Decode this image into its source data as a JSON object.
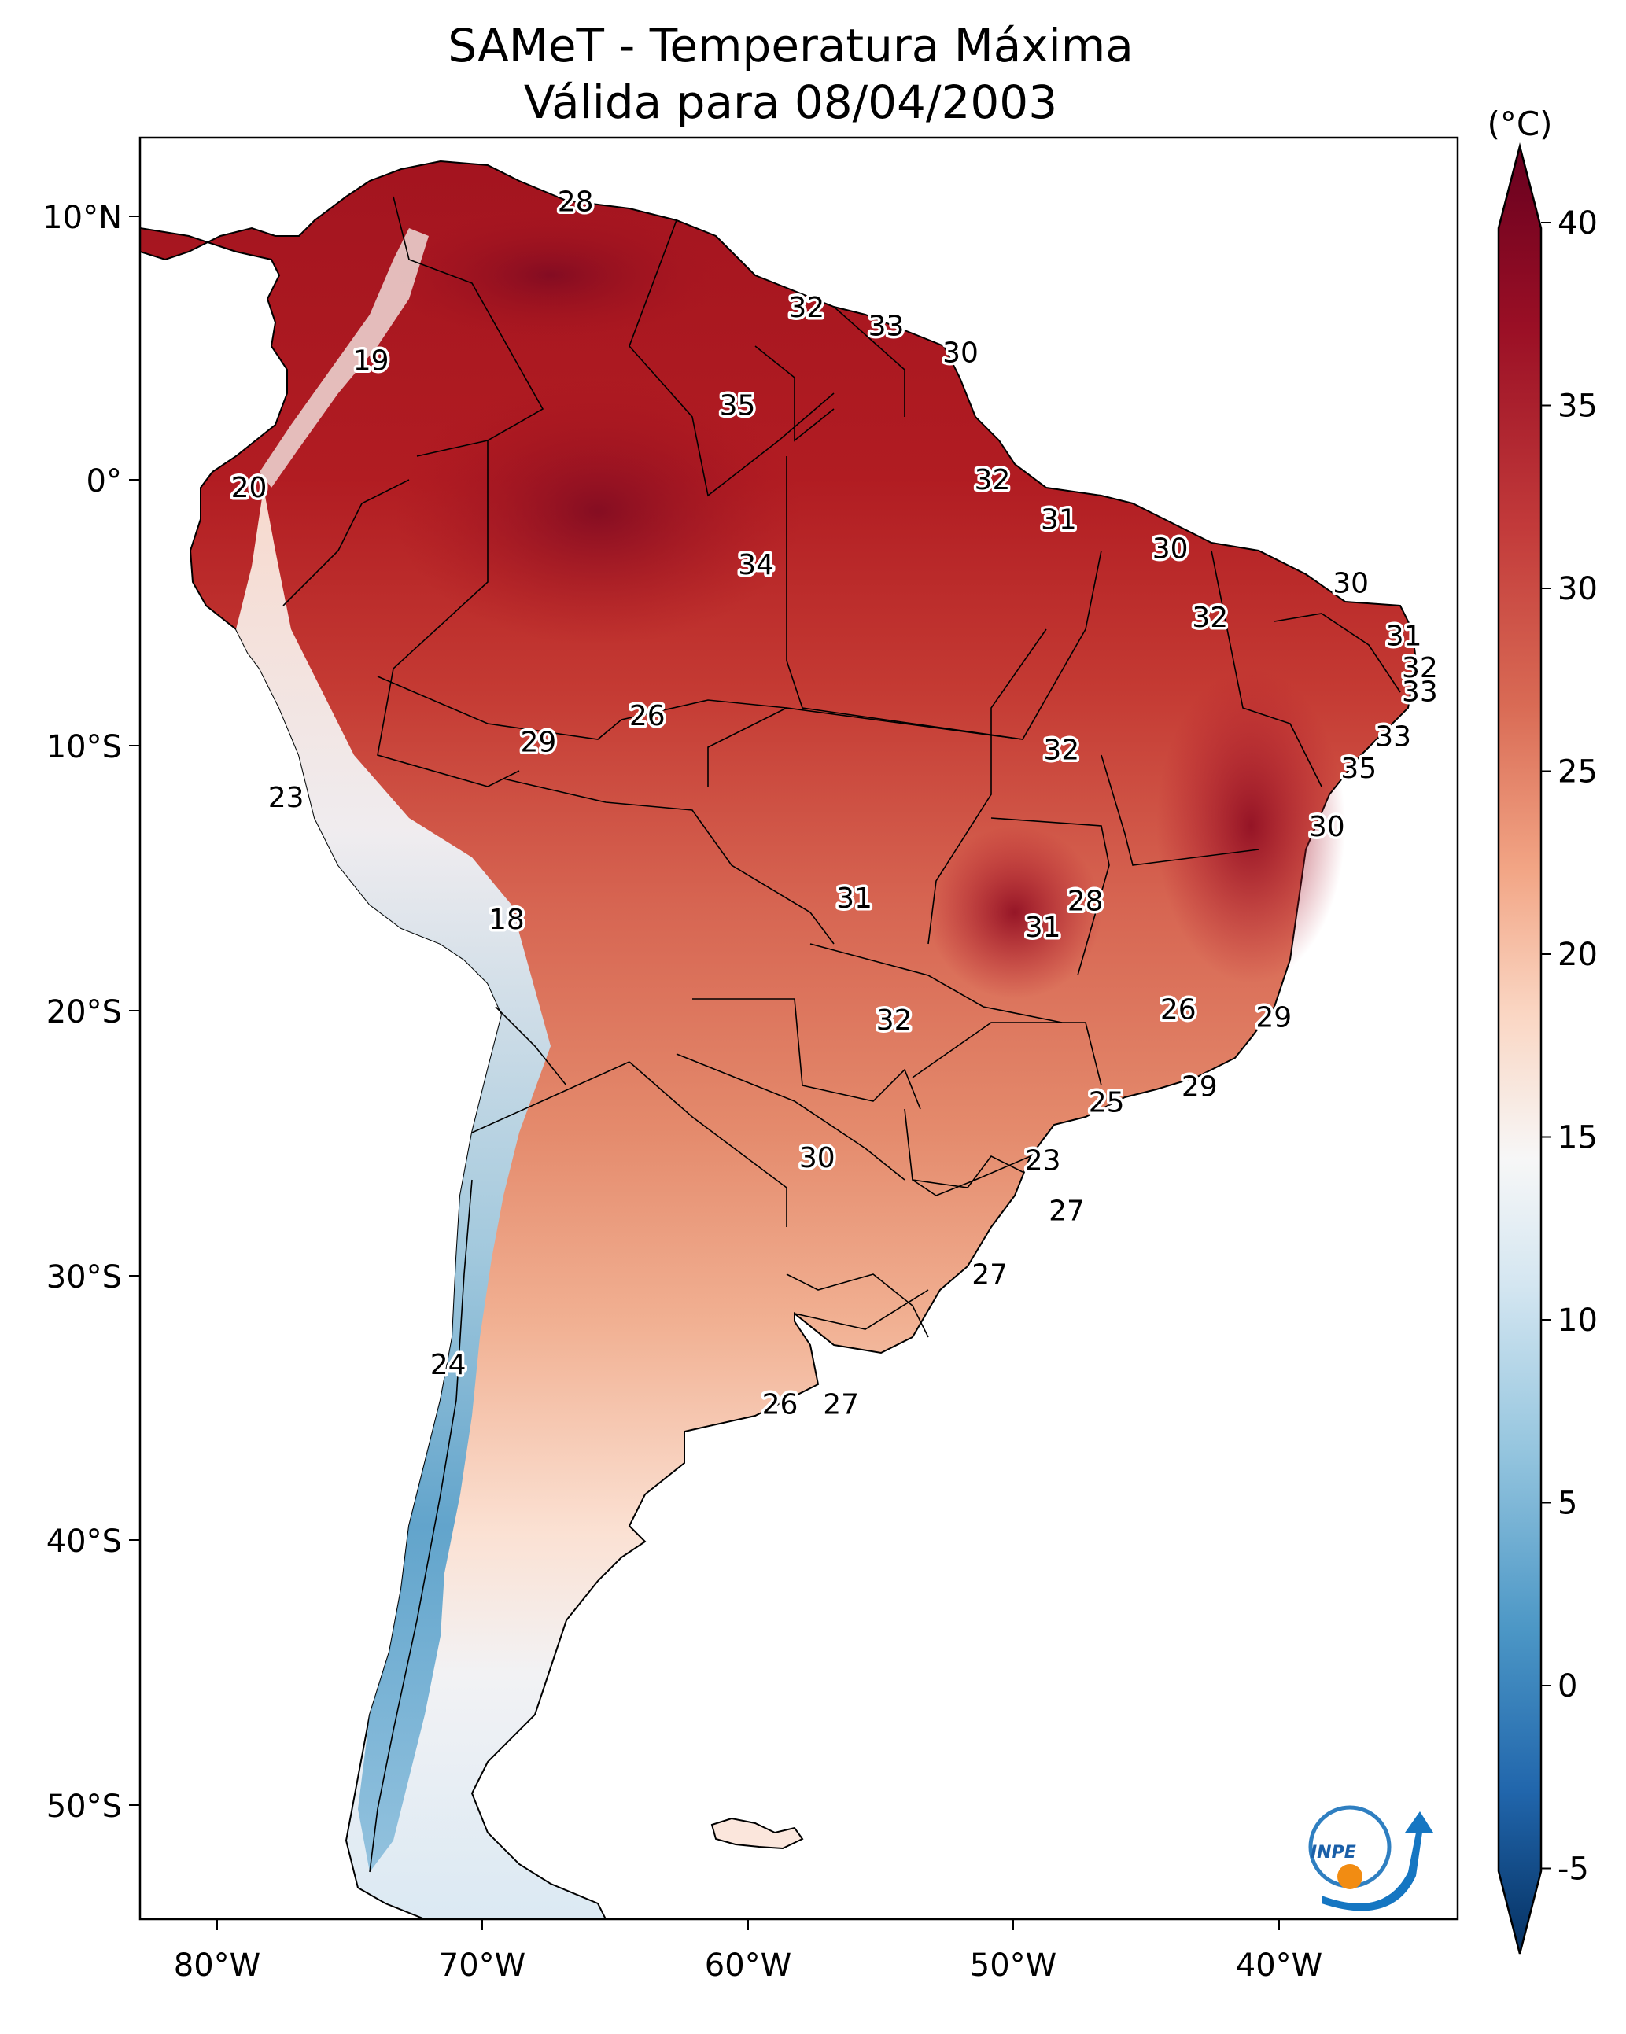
{
  "title": {
    "line1": "SAMeT - Temperatura Máxima",
    "line2": "Válida para 08/04/2003"
  },
  "axes": {
    "longitude_ticks": [
      "80°W",
      "70°W",
      "60°W",
      "50°W",
      "40°W"
    ],
    "latitude_ticks": [
      "10°N",
      "0°",
      "10°S",
      "20°S",
      "30°S",
      "40°S",
      "50°S"
    ]
  },
  "colorbar": {
    "unit": "(°C)",
    "ticks": [
      "40",
      "35",
      "30",
      "25",
      "20",
      "15",
      "10",
      "5",
      "0",
      "-5"
    ],
    "range": [
      -7,
      41
    ],
    "colors": {
      "hot_extreme": "#67001f",
      "hot": "#b2182b",
      "warm": "#d6604d",
      "mild": "#f4a582",
      "light": "#fddbc7",
      "neutral": "#f7f7f7",
      "cool": "#d1e5f0",
      "cold": "#92c5de",
      "colder": "#4393c3",
      "coldest": "#2166ac",
      "cold_extreme": "#053061"
    }
  },
  "contour_labels": [
    {
      "text": "28",
      "lon": -66.5,
      "lat": 10.5
    },
    {
      "text": "19",
      "lon": -74.2,
      "lat": 4.5
    },
    {
      "text": "32",
      "lon": -57.8,
      "lat": 6.5
    },
    {
      "text": "33",
      "lon": -54.8,
      "lat": 5.8
    },
    {
      "text": "30",
      "lon": -52.0,
      "lat": 4.8
    },
    {
      "text": "35",
      "lon": -60.4,
      "lat": 2.8
    },
    {
      "text": "20",
      "lon": -78.8,
      "lat": -0.3
    },
    {
      "text": "32",
      "lon": -50.8,
      "lat": 0.0
    },
    {
      "text": "31",
      "lon": -48.3,
      "lat": -1.5
    },
    {
      "text": "34",
      "lon": -59.7,
      "lat": -3.2
    },
    {
      "text": "30",
      "lon": -44.1,
      "lat": -2.6
    },
    {
      "text": "30",
      "lon": -37.3,
      "lat": -3.9
    },
    {
      "text": "32",
      "lon": -42.6,
      "lat": -5.2
    },
    {
      "text": "31",
      "lon": -35.3,
      "lat": -5.9
    },
    {
      "text": "32",
      "lon": -34.7,
      "lat": -7.1
    },
    {
      "text": "33",
      "lon": -34.7,
      "lat": -8.0
    },
    {
      "text": "26",
      "lon": -63.8,
      "lat": -8.9
    },
    {
      "text": "29",
      "lon": -67.9,
      "lat": -9.9
    },
    {
      "text": "32",
      "lon": -48.2,
      "lat": -10.2
    },
    {
      "text": "33",
      "lon": -35.7,
      "lat": -9.7
    },
    {
      "text": "35",
      "lon": -37.0,
      "lat": -10.9
    },
    {
      "text": "23",
      "lon": -77.4,
      "lat": -12.0
    },
    {
      "text": "30",
      "lon": -38.2,
      "lat": -13.1
    },
    {
      "text": "28",
      "lon": -47.3,
      "lat": -15.9
    },
    {
      "text": "31",
      "lon": -56.0,
      "lat": -15.8
    },
    {
      "text": "18",
      "lon": -69.1,
      "lat": -16.6
    },
    {
      "text": "31",
      "lon": -48.9,
      "lat": -16.9
    },
    {
      "text": "26",
      "lon": -43.8,
      "lat": -20.0
    },
    {
      "text": "29",
      "lon": -40.2,
      "lat": -20.3
    },
    {
      "text": "32",
      "lon": -54.5,
      "lat": -20.4
    },
    {
      "text": "29",
      "lon": -43.0,
      "lat": -22.9
    },
    {
      "text": "25",
      "lon": -46.5,
      "lat": -23.5
    },
    {
      "text": "23",
      "lon": -48.9,
      "lat": -25.7
    },
    {
      "text": "30",
      "lon": -57.4,
      "lat": -25.6
    },
    {
      "text": "27",
      "lon": -48.0,
      "lat": -27.6
    },
    {
      "text": "27",
      "lon": -50.9,
      "lat": -30.0
    },
    {
      "text": "24",
      "lon": -71.3,
      "lat": -33.4
    },
    {
      "text": "26",
      "lon": -58.8,
      "lat": -34.9
    },
    {
      "text": "27",
      "lon": -56.5,
      "lat": -34.9
    }
  ],
  "logo": {
    "text": "INPE"
  }
}
